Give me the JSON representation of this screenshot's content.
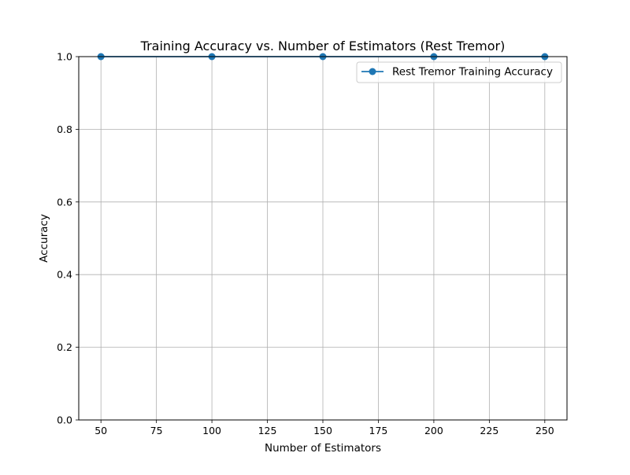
{
  "chart_data": {
    "type": "line",
    "title": "Training Accuracy vs. Number of Estimators (Rest Tremor)",
    "xlabel": "Number of Estimators",
    "ylabel": "Accuracy",
    "xlim": [
      40,
      260
    ],
    "ylim": [
      0,
      1
    ],
    "x_ticks": [
      50,
      75,
      100,
      125,
      150,
      175,
      200,
      225,
      250
    ],
    "y_ticks": [
      0.0,
      0.2,
      0.4,
      0.6,
      0.8,
      1.0
    ],
    "y_tick_labels": [
      "0.0",
      "0.2",
      "0.4",
      "0.6",
      "0.8",
      "1.0"
    ],
    "x": [
      50,
      100,
      150,
      200,
      250
    ],
    "series": [
      {
        "name": "Rest Tremor Training Accuracy",
        "values": [
          1.0,
          1.0,
          1.0,
          1.0,
          1.0
        ],
        "color": "#1f77b4",
        "marker": "circle"
      }
    ],
    "grid": true,
    "legend_position": "upper-right"
  }
}
